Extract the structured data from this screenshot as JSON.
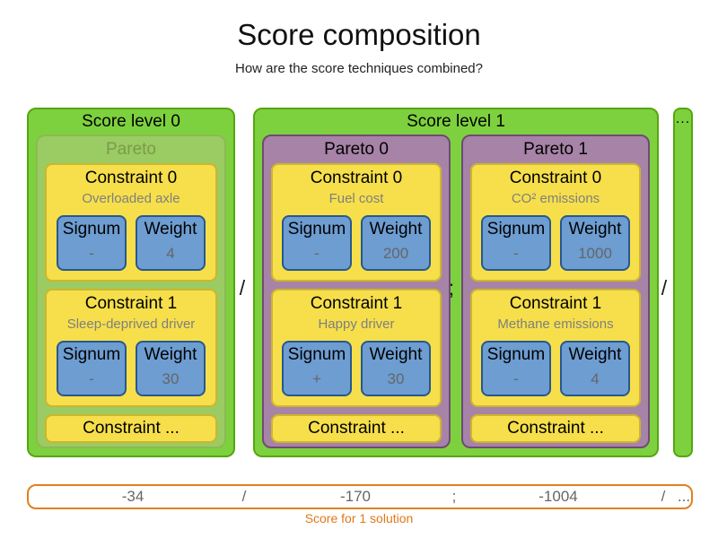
{
  "title": "Score composition",
  "subtitle": "How are the score techniques combined?",
  "field_labels": {
    "signum": "Signum",
    "weight": "Weight"
  },
  "constraint_ellipsis": "Constraint ...",
  "score_levels": [
    {
      "label": "Score level 0",
      "paretos": [
        {
          "label": "Pareto",
          "faded": true,
          "constraints": [
            {
              "label": "Constraint 0",
              "description": "Overloaded axle",
              "signum": "-",
              "weight": "4"
            },
            {
              "label": "Constraint 1",
              "description": "Sleep-deprived driver",
              "signum": "-",
              "weight": "30"
            }
          ]
        }
      ]
    },
    {
      "label": "Score level 1",
      "paretos": [
        {
          "label": "Pareto 0",
          "faded": false,
          "constraints": [
            {
              "label": "Constraint 0",
              "description": "Fuel cost",
              "signum": "-",
              "weight": "200"
            },
            {
              "label": "Constraint 1",
              "description": "Happy driver",
              "signum": "+",
              "weight": "30"
            }
          ]
        },
        {
          "label": "Pareto 1",
          "faded": false,
          "constraints": [
            {
              "label": "Constraint 0",
              "description": "CO² emissions",
              "signum": "-",
              "weight": "1000"
            },
            {
              "label": "Constraint 1",
              "description": "Methane emissions",
              "signum": "-",
              "weight": "4"
            }
          ]
        }
      ]
    }
  ],
  "diagram_separators": [
    "/",
    ";",
    "/"
  ],
  "ellipsis_column_label": "...",
  "score_bar": {
    "values": [
      "-34",
      "/",
      "-170",
      ";",
      "-1004",
      "/",
      "..."
    ],
    "caption": "Score for 1 solution"
  },
  "colors": {
    "level_fill": "#7ed13e",
    "level_border": "#55a60f",
    "pareto_faded_fill": "#9bcb63",
    "pareto_faded_border": "#8cba52",
    "pareto_faded_text": "#7b9c4a",
    "pareto_fill": "#a783a8",
    "pareto_border": "#6f4b73",
    "constraint_fill": "#f6df4b",
    "constraint_border": "#cdb62c",
    "field_fill": "#6d9dd1",
    "field_border": "#27588e",
    "muted_text": "#7f7f7f",
    "value_text": "#666666",
    "bar_border": "#e0801f",
    "caption_text": "#e07818"
  }
}
